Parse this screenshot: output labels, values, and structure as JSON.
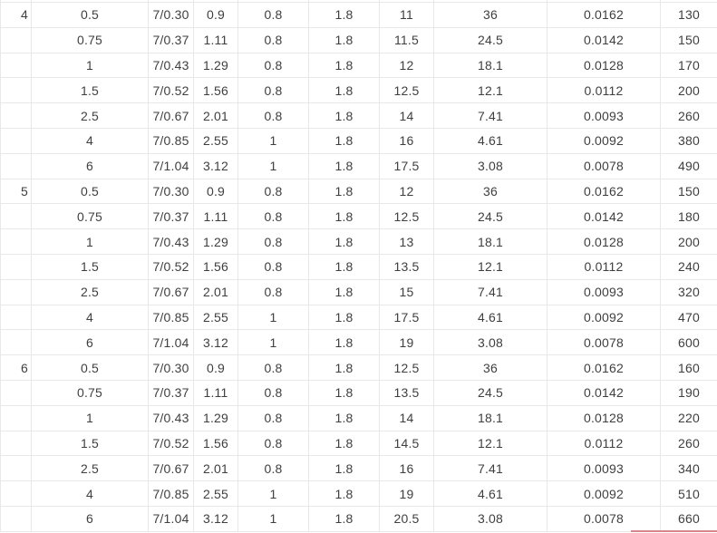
{
  "colors": {
    "background": "#ffffff",
    "text": "#3f3f3f",
    "gridline": "#e8e8e8",
    "red_underline": "#d9858c"
  },
  "chart_data": {
    "type": "table",
    "title": "",
    "grid": true,
    "legend": false,
    "columns_visible_headers": [],
    "rows": [
      [
        "4",
        "0.5",
        "7/0.30",
        "0.9",
        "0.8",
        "1.8",
        "11",
        "36",
        "0.0162",
        "130"
      ],
      [
        "",
        "0.75",
        "7/0.37",
        "1.11",
        "0.8",
        "1.8",
        "11.5",
        "24.5",
        "0.0142",
        "150"
      ],
      [
        "",
        "1",
        "7/0.43",
        "1.29",
        "0.8",
        "1.8",
        "12",
        "18.1",
        "0.0128",
        "170"
      ],
      [
        "",
        "1.5",
        "7/0.52",
        "1.56",
        "0.8",
        "1.8",
        "12.5",
        "12.1",
        "0.0112",
        "200"
      ],
      [
        "",
        "2.5",
        "7/0.67",
        "2.01",
        "0.8",
        "1.8",
        "14",
        "7.41",
        "0.0093",
        "260"
      ],
      [
        "",
        "4",
        "7/0.85",
        "2.55",
        "1",
        "1.8",
        "16",
        "4.61",
        "0.0092",
        "380"
      ],
      [
        "",
        "6",
        "7/1.04",
        "3.12",
        "1",
        "1.8",
        "17.5",
        "3.08",
        "0.0078",
        "490"
      ],
      [
        "5",
        "0.5",
        "7/0.30",
        "0.9",
        "0.8",
        "1.8",
        "12",
        "36",
        "0.0162",
        "150"
      ],
      [
        "",
        "0.75",
        "7/0.37",
        "1.11",
        "0.8",
        "1.8",
        "12.5",
        "24.5",
        "0.0142",
        "180"
      ],
      [
        "",
        "1",
        "7/0.43",
        "1.29",
        "0.8",
        "1.8",
        "13",
        "18.1",
        "0.0128",
        "200"
      ],
      [
        "",
        "1.5",
        "7/0.52",
        "1.56",
        "0.8",
        "1.8",
        "13.5",
        "12.1",
        "0.0112",
        "240"
      ],
      [
        "",
        "2.5",
        "7/0.67",
        "2.01",
        "0.8",
        "1.8",
        "15",
        "7.41",
        "0.0093",
        "320"
      ],
      [
        "",
        "4",
        "7/0.85",
        "2.55",
        "1",
        "1.8",
        "17.5",
        "4.61",
        "0.0092",
        "470"
      ],
      [
        "",
        "6",
        "7/1.04",
        "3.12",
        "1",
        "1.8",
        "19",
        "3.08",
        "0.0078",
        "600"
      ],
      [
        "6",
        "0.5",
        "7/0.30",
        "0.9",
        "0.8",
        "1.8",
        "12.5",
        "36",
        "0.0162",
        "160"
      ],
      [
        "",
        "0.75",
        "7/0.37",
        "1.11",
        "0.8",
        "1.8",
        "13.5",
        "24.5",
        "0.0142",
        "190"
      ],
      [
        "",
        "1",
        "7/0.43",
        "1.29",
        "0.8",
        "1.8",
        "14",
        "18.1",
        "0.0128",
        "220"
      ],
      [
        "",
        "1.5",
        "7/0.52",
        "1.56",
        "0.8",
        "1.8",
        "14.5",
        "12.1",
        "0.0112",
        "260"
      ],
      [
        "",
        "2.5",
        "7/0.67",
        "2.01",
        "0.8",
        "1.8",
        "16",
        "7.41",
        "0.0093",
        "340"
      ],
      [
        "",
        "4",
        "7/0.85",
        "2.55",
        "1",
        "1.8",
        "19",
        "4.61",
        "0.0092",
        "510"
      ],
      [
        "",
        "6",
        "7/1.04",
        "3.12",
        "1",
        "1.8",
        "20.5",
        "3.08",
        "0.0078",
        "660"
      ]
    ]
  }
}
